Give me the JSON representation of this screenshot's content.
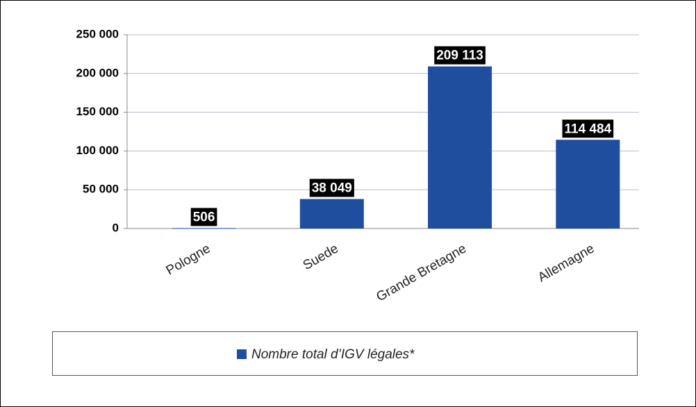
{
  "chart_data": {
    "type": "bar",
    "categories": [
      "Pologne",
      "Suede",
      "Grande Bretagne",
      "Allemagne"
    ],
    "series": [
      {
        "name": "Nombre total d’IGV légales*",
        "color": "#1f4e9f",
        "values": [
          506,
          38049,
          209113,
          114484
        ],
        "value_labels": [
          "506",
          "38 049",
          "209 113",
          "114 484"
        ]
      }
    ],
    "ylim": [
      0,
      250000
    ],
    "yticks": [
      0,
      {
        "value": 50000,
        "label": "50 000"
      },
      {
        "value": 100000,
        "label": "100 000"
      },
      {
        "value": 150000,
        "label": "150 000"
      },
      {
        "value": 200000,
        "label": "200 000"
      },
      {
        "value": 250000,
        "label": "250 000"
      }
    ],
    "grid": true,
    "legend": "bottom"
  }
}
